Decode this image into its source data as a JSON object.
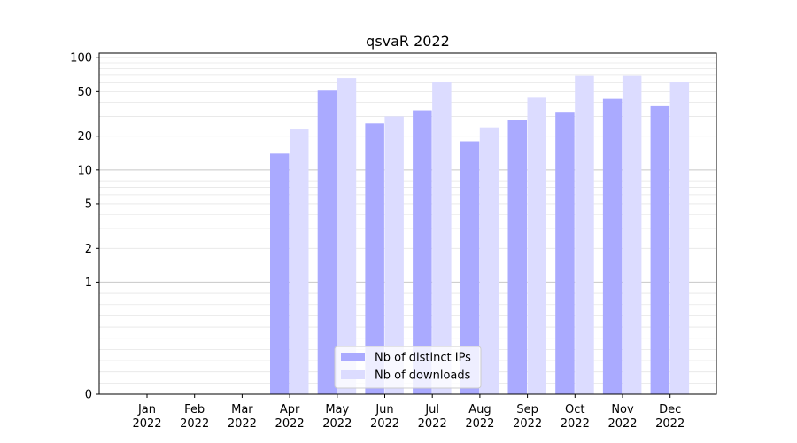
{
  "chart_data": {
    "type": "bar",
    "title": "qsvaR 2022",
    "xlabel": "",
    "ylabel": "",
    "categories": [
      {
        "month": "Jan",
        "year": "2022"
      },
      {
        "month": "Feb",
        "year": "2022"
      },
      {
        "month": "Mar",
        "year": "2022"
      },
      {
        "month": "Apr",
        "year": "2022"
      },
      {
        "month": "May",
        "year": "2022"
      },
      {
        "month": "Jun",
        "year": "2022"
      },
      {
        "month": "Jul",
        "year": "2022"
      },
      {
        "month": "Aug",
        "year": "2022"
      },
      {
        "month": "Sep",
        "year": "2022"
      },
      {
        "month": "Oct",
        "year": "2022"
      },
      {
        "month": "Nov",
        "year": "2022"
      },
      {
        "month": "Dec",
        "year": "2022"
      }
    ],
    "series": [
      {
        "name": "Nb of distinct IPs",
        "color": "#aaaaff",
        "values": [
          0,
          0,
          0,
          14,
          51,
          26,
          34,
          18,
          28,
          33,
          43,
          37
        ]
      },
      {
        "name": "Nb of downloads",
        "color": "#dcdcff",
        "values": [
          0,
          0,
          0,
          23,
          66,
          30,
          61,
          24,
          44,
          69,
          69,
          61
        ]
      }
    ],
    "y_scale": "symlog",
    "ylim": [
      0,
      110
    ],
    "yticks": [
      {
        "value": 0,
        "label": "0"
      },
      {
        "value": 1,
        "label": "1"
      },
      {
        "value": 2,
        "label": "2"
      },
      {
        "value": 5,
        "label": "5"
      },
      {
        "value": 10,
        "label": "10"
      },
      {
        "value": 20,
        "label": "20"
      },
      {
        "value": 50,
        "label": "50"
      },
      {
        "value": 100,
        "label": "100"
      }
    ],
    "grid": true,
    "legend": "bottom-center"
  }
}
